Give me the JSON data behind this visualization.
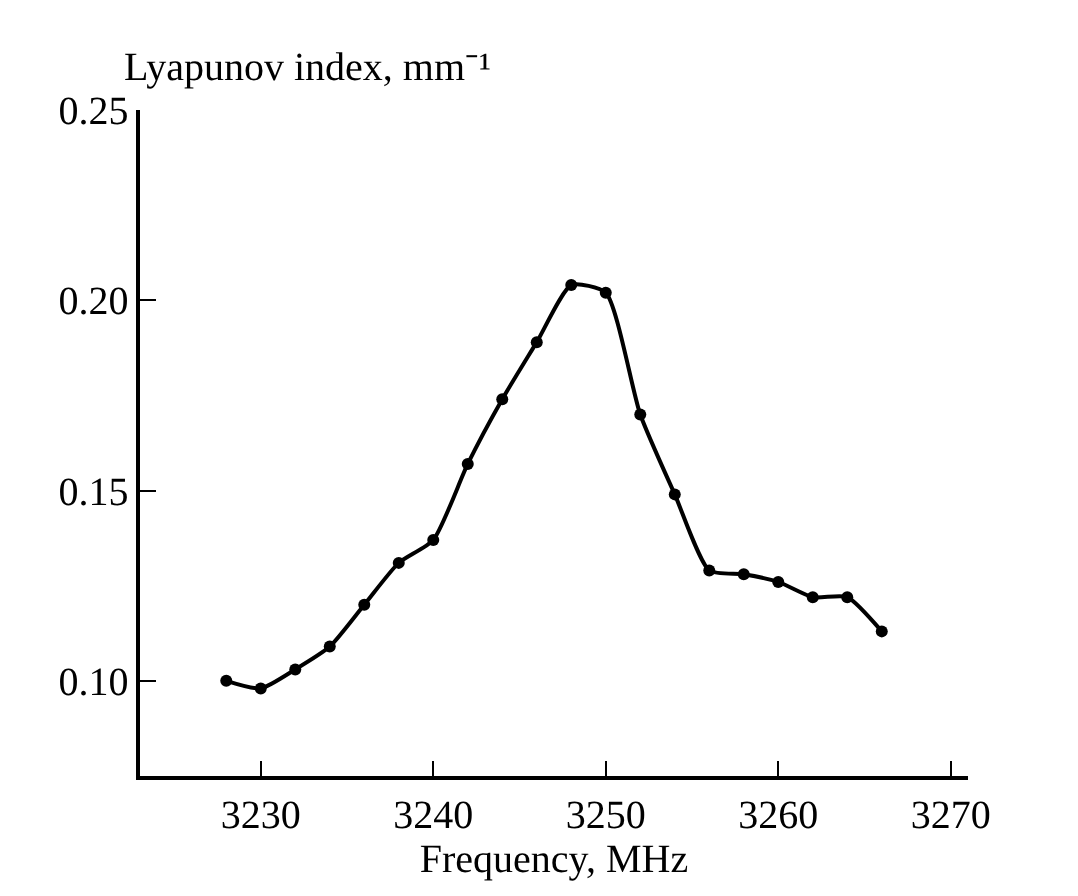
{
  "chart_data": {
    "type": "line",
    "xlabel": "Frequency, MHz",
    "ylabel": "Lyapunov index, mm⁻¹",
    "x": [
      3228,
      3230,
      3232,
      3234,
      3236,
      3238,
      3240,
      3242,
      3244,
      3246,
      3248,
      3250,
      3252,
      3254,
      3256,
      3258,
      3260,
      3262,
      3264,
      3266
    ],
    "series": [
      {
        "color": "#000000",
        "values": [
          0.1,
          0.098,
          0.103,
          0.109,
          0.12,
          0.131,
          0.137,
          0.157,
          0.174,
          0.189,
          0.204,
          0.202,
          0.17,
          0.149,
          0.129,
          0.128,
          0.126,
          0.122,
          0.122,
          0.113
        ]
      }
    ],
    "xlim": [
      3223,
      3271
    ],
    "xticks": [
      3230,
      3240,
      3250,
      3260,
      3270
    ],
    "ylim": [
      0.075,
      0.25
    ],
    "yticks": [
      {
        "value": 0.1,
        "label": "0.10"
      },
      {
        "value": 0.15,
        "label": "0.15"
      },
      {
        "value": 0.2,
        "label": "0.20"
      },
      {
        "value": 0.25,
        "label": "0.25"
      }
    ],
    "legend": false,
    "marker": "circle",
    "line_style": "solid"
  }
}
